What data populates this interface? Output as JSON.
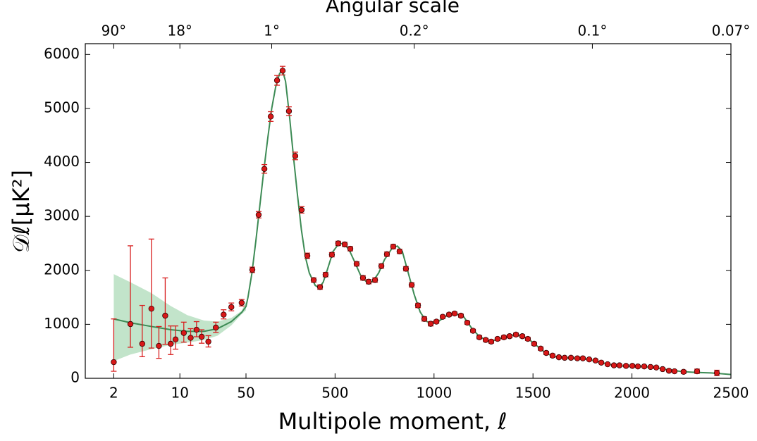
{
  "chart_data": {
    "type": "errorbar",
    "title": "Angular scale",
    "xlabel": "Multipole moment, ℓ",
    "ylabel": "𝒟ℓ[μK²]",
    "xscale": "log-linear",
    "xbreak": 50,
    "xlim": [
      1,
      2500
    ],
    "ylim": [
      0,
      6200
    ],
    "xticks": [
      2,
      10,
      50,
      500,
      1000,
      1500,
      2000,
      2500
    ],
    "x2ticks": [
      {
        "value": 2,
        "label": "90°"
      },
      {
        "value": 10,
        "label": "18°"
      },
      {
        "value": 180,
        "label": "1°"
      },
      {
        "value": 900,
        "label": "0.2°"
      },
      {
        "value": 1800,
        "label": "0.1°"
      },
      {
        "value": 2500,
        "label": "0.07°"
      }
    ],
    "yticks": [
      0,
      1000,
      2000,
      3000,
      4000,
      5000,
      6000
    ],
    "band": {
      "color": "#a8d8b4",
      "x": [
        2,
        3,
        5,
        8,
        12,
        18,
        25,
        35,
        45,
        50
      ],
      "low": [
        320,
        440,
        540,
        620,
        660,
        710,
        790,
        980,
        1190,
        1260
      ],
      "high": [
        1930,
        1780,
        1580,
        1340,
        1170,
        1070,
        1050,
        1120,
        1250,
        1420
      ]
    },
    "model": {
      "color": "#3d8b55",
      "x": [
        2,
        3,
        5,
        8,
        12,
        18,
        25,
        35,
        45,
        50,
        60,
        80,
        100,
        120,
        140,
        160,
        180,
        200,
        220,
        235,
        250,
        270,
        290,
        310,
        330,
        350,
        370,
        400,
        420,
        440,
        460,
        490,
        520,
        545,
        570,
        600,
        630,
        660,
        690,
        720,
        750,
        790,
        815,
        840,
        870,
        900,
        930,
        960,
        990,
        1020,
        1060,
        1110,
        1150,
        1190,
        1230,
        1270,
        1300,
        1340,
        1400,
        1440,
        1480,
        1520,
        1560,
        1600,
        1650,
        1700,
        1760,
        1820,
        1880,
        1940,
        2000,
        2060,
        2120,
        2180,
        2250,
        2320,
        2400,
        2500
      ],
      "values": [
        1100,
        1030,
        960,
        900,
        870,
        870,
        920,
        1050,
        1220,
        1330,
        1500,
        1950,
        2550,
        3200,
        3850,
        4450,
        5000,
        5400,
        5650,
        5700,
        5500,
        4850,
        4100,
        3400,
        2750,
        2250,
        1950,
        1720,
        1680,
        1780,
        2000,
        2350,
        2500,
        2490,
        2390,
        2150,
        1900,
        1780,
        1790,
        1950,
        2200,
        2420,
        2450,
        2350,
        1950,
        1550,
        1230,
        1060,
        1010,
        1050,
        1150,
        1200,
        1140,
        930,
        770,
        700,
        700,
        740,
        800,
        790,
        720,
        600,
        480,
        410,
        380,
        375,
        360,
        320,
        260,
        230,
        225,
        215,
        195,
        160,
        125,
        110,
        100,
        70
      ]
    },
    "points": {
      "color": "#d81818",
      "edgecolor": "#300000",
      "errcolor": "#d82020",
      "x": [
        2,
        3,
        4,
        5,
        6,
        7,
        8,
        9,
        11,
        13,
        15,
        17,
        20,
        24,
        29,
        35,
        45,
        82,
        114,
        143,
        175,
        207,
        235,
        267,
        299,
        331,
        360,
        392,
        424,
        452,
        484,
        516,
        549,
        577,
        609,
        641,
        670,
        702,
        734,
        762,
        794,
        826,
        858,
        887,
        919,
        951,
        983,
        1012,
        1044,
        1076,
        1104,
        1136,
        1168,
        1197,
        1229,
        1261,
        1289,
        1321,
        1353,
        1382,
        1414,
        1446,
        1474,
        1506,
        1539,
        1567,
        1599,
        1631,
        1660,
        1692,
        1724,
        1752,
        1784,
        1816,
        1845,
        1877,
        1909,
        1937,
        1970,
        2002,
        2030,
        2062,
        2094,
        2123,
        2155,
        2187,
        2215,
        2261,
        2329,
        2429
      ],
      "values": [
        300,
        1005,
        640,
        1290,
        600,
        1160,
        640,
        720,
        840,
        750,
        900,
        770,
        680,
        940,
        1180,
        1320,
        1400,
        2010,
        3030,
        3880,
        4850,
        5520,
        5700,
        4950,
        4120,
        3120,
        2270,
        1820,
        1690,
        1920,
        2290,
        2500,
        2480,
        2400,
        2120,
        1860,
        1790,
        1820,
        2080,
        2300,
        2440,
        2350,
        2030,
        1730,
        1350,
        1100,
        1010,
        1050,
        1140,
        1180,
        1200,
        1160,
        1030,
        880,
        760,
        710,
        680,
        730,
        760,
        780,
        810,
        780,
        730,
        640,
        550,
        470,
        420,
        390,
        380,
        380,
        370,
        370,
        350,
        330,
        290,
        260,
        240,
        240,
        230,
        230,
        220,
        220,
        210,
        200,
        170,
        140,
        130,
        120,
        130,
        100
      ],
      "err_low": [
        170,
        430,
        240,
        730,
        230,
        530,
        200,
        180,
        170,
        140,
        130,
        120,
        100,
        90,
        80,
        70,
        60,
        50,
        60,
        80,
        90,
        90,
        80,
        80,
        70,
        60,
        50,
        40,
        40,
        40,
        40,
        40,
        40,
        40,
        40,
        40,
        40,
        40,
        40,
        40,
        40,
        40,
        40,
        40,
        40,
        40,
        40,
        30,
        30,
        30,
        30,
        30,
        30,
        30,
        30,
        30,
        30,
        30,
        30,
        30,
        30,
        30,
        30,
        30,
        30,
        30,
        30,
        20,
        20,
        20,
        20,
        20,
        20,
        20,
        20,
        20,
        20,
        20,
        20,
        20,
        20,
        20,
        20,
        20,
        20,
        20,
        20,
        30,
        40,
        50
      ],
      "err_high": [
        800,
        1450,
        710,
        1290,
        360,
        700,
        330,
        250,
        200,
        170,
        150,
        130,
        110,
        100,
        90,
        75,
        60,
        50,
        60,
        80,
        90,
        90,
        80,
        80,
        70,
        60,
        50,
        40,
        40,
        40,
        40,
        40,
        40,
        40,
        40,
        40,
        40,
        40,
        40,
        40,
        40,
        40,
        40,
        40,
        40,
        40,
        40,
        30,
        30,
        30,
        30,
        30,
        30,
        30,
        30,
        30,
        30,
        30,
        30,
        30,
        30,
        30,
        30,
        30,
        30,
        30,
        30,
        20,
        20,
        20,
        20,
        20,
        20,
        20,
        20,
        20,
        20,
        20,
        20,
        20,
        20,
        20,
        20,
        20,
        20,
        20,
        20,
        30,
        40,
        50
      ]
    }
  }
}
